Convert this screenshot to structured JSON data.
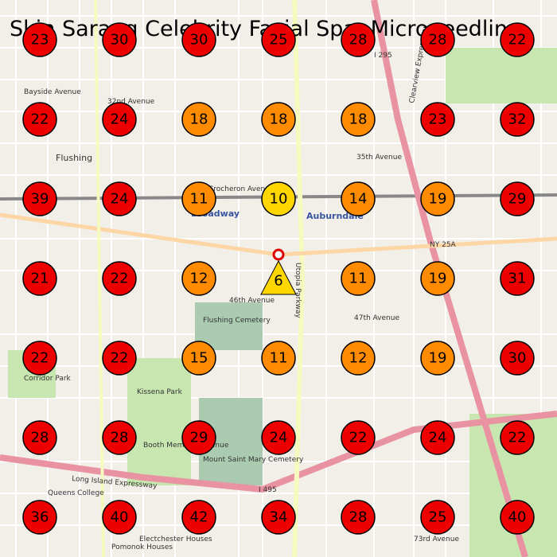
{
  "title": "Skin Sarang Celebrity Facial Spa: Microneedling",
  "rank_grid": [
    [
      23,
      30,
      30,
      25,
      28,
      28,
      22
    ],
    [
      22,
      24,
      18,
      18,
      18,
      23,
      32
    ],
    [
      39,
      24,
      11,
      10,
      14,
      19,
      29
    ],
    [
      21,
      22,
      12,
      6,
      11,
      19,
      31
    ],
    [
      22,
      22,
      15,
      11,
      12,
      19,
      30
    ],
    [
      28,
      28,
      29,
      24,
      22,
      24,
      22
    ],
    [
      36,
      40,
      42,
      34,
      28,
      25,
      40
    ]
  ],
  "color_scale": [
    {
      "upto": 10,
      "color": "#ffd700"
    },
    {
      "upto": 19,
      "color": "#ff8c00"
    }
  ],
  "default_color": "#ee0000",
  "center_shape": "triangle",
  "map_labels": {
    "flushing": "Flushing",
    "auburndale": "Auburndale",
    "broadway": "Broadway",
    "cemetery": "Flushing Cemetery",
    "kissena": "Kissena Park",
    "mount": "Mount Saint Mary Cemetery",
    "lie": "Long Island Expressway",
    "utopia": "Utopia Parkway",
    "clearview": "Clearview Expressway",
    "crocheron": "Crocheron Avenue",
    "ave46": "46th Avenue",
    "ave47": "47th Avenue",
    "ave32": "32nd Avenue",
    "ave35": "35th Avenue",
    "bayside": "Bayside Avenue",
    "booth": "Booth Memorial Avenue",
    "ny25a": "NY 25A",
    "i495": "I 495",
    "i295": "I 295",
    "ave73": "73rd Avenue",
    "college": "Queens College",
    "pomonok": "Pomonok Houses",
    "electchester": "Electchester Houses",
    "corridor": "Corridor Park"
  }
}
